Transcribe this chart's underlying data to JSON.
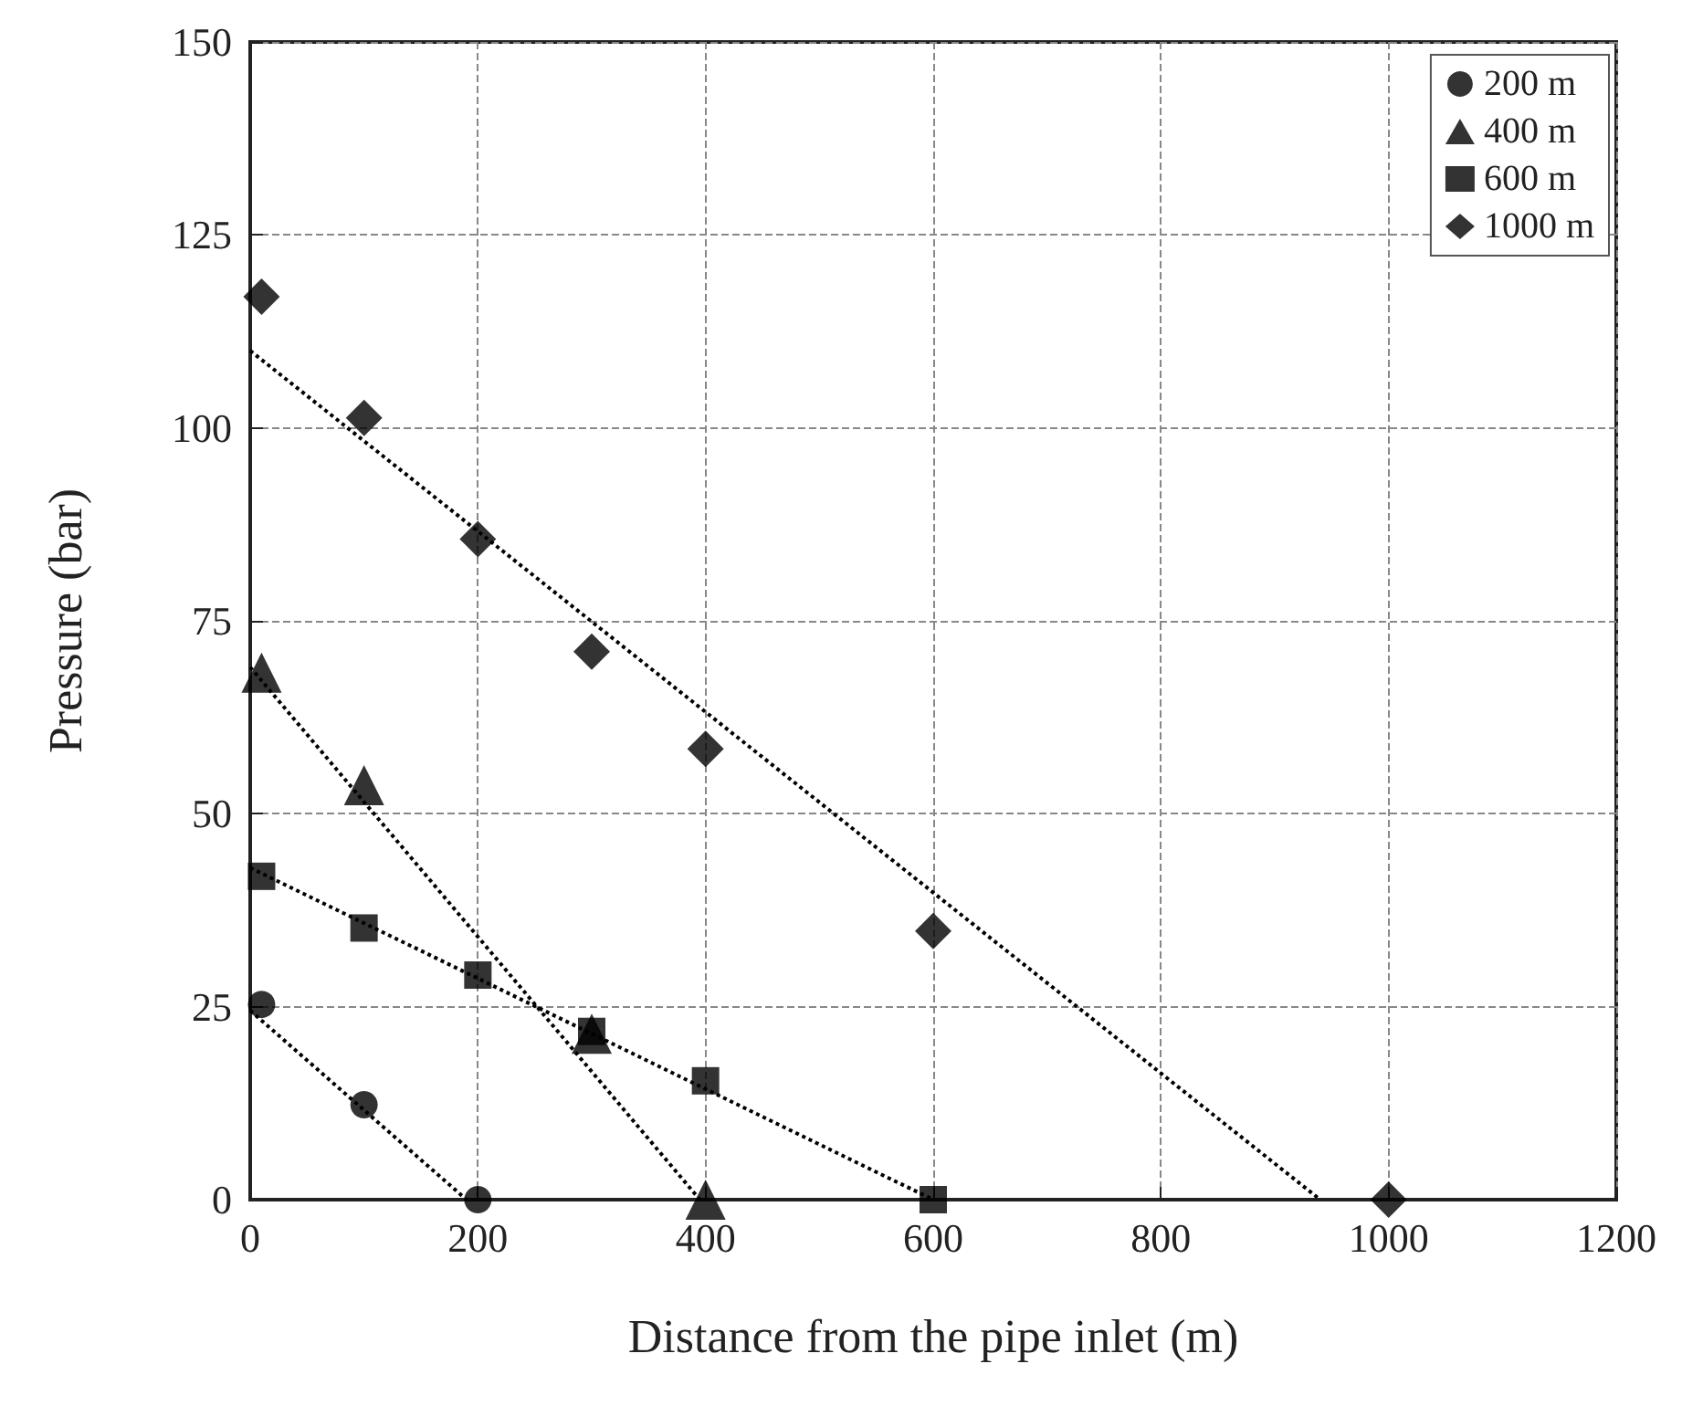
{
  "chart_data": {
    "type": "scatter",
    "xlabel": "Distance from the pipe inlet (m)",
    "ylabel": "Pressure (bar)",
    "xlim": [
      0,
      1200
    ],
    "xticks": [
      0,
      200,
      400,
      600,
      800,
      1000,
      1200
    ],
    "ylim": [
      0,
      150
    ],
    "yticks": [
      0,
      25,
      50,
      75,
      100,
      125,
      150
    ],
    "grid": true,
    "legend": "top right",
    "series": [
      {
        "name": "200 m",
        "color": "#000000",
        "marker": "circle",
        "x": [
          10,
          100,
          200
        ],
        "values": [
          25.3,
          12.3,
          0
        ]
      },
      {
        "name": "400 m",
        "color": "#000000",
        "marker": "triangle",
        "x": [
          10,
          100,
          300,
          400
        ],
        "values": [
          68.3,
          53.7,
          21.5,
          0
        ]
      },
      {
        "name": "600 m",
        "color": "#000000",
        "marker": "square",
        "x": [
          10,
          100,
          200,
          300,
          400,
          600
        ],
        "values": [
          41.9,
          35.2,
          29.1,
          21.8,
          15.4,
          0
        ]
      },
      {
        "name": "1000 m",
        "color": "#000000",
        "marker": "diamond",
        "x": [
          10,
          100,
          200,
          300,
          400,
          600,
          1000
        ],
        "values": [
          117,
          101.3,
          85.6,
          71,
          58.4,
          34.8,
          0
        ]
      },
      {
        "type": "line",
        "color": "#000000",
        "marker": "none",
        "line_style": "dotted",
        "x": [
          0,
          190
        ],
        "values": [
          24.5,
          0
        ]
      },
      {
        "type": "line",
        "color": "#000000",
        "marker": "none",
        "line_style": "dotted",
        "x": [
          0,
          395
        ],
        "values": [
          69,
          0
        ]
      },
      {
        "type": "line",
        "color": "#000000",
        "marker": "none",
        "line_style": "dotted",
        "x": [
          0,
          600
        ],
        "values": [
          43,
          0
        ]
      },
      {
        "type": "line",
        "color": "#000000",
        "marker": "none",
        "line_style": "dotted",
        "x": [
          0,
          940
        ],
        "values": [
          110,
          0
        ]
      }
    ]
  }
}
